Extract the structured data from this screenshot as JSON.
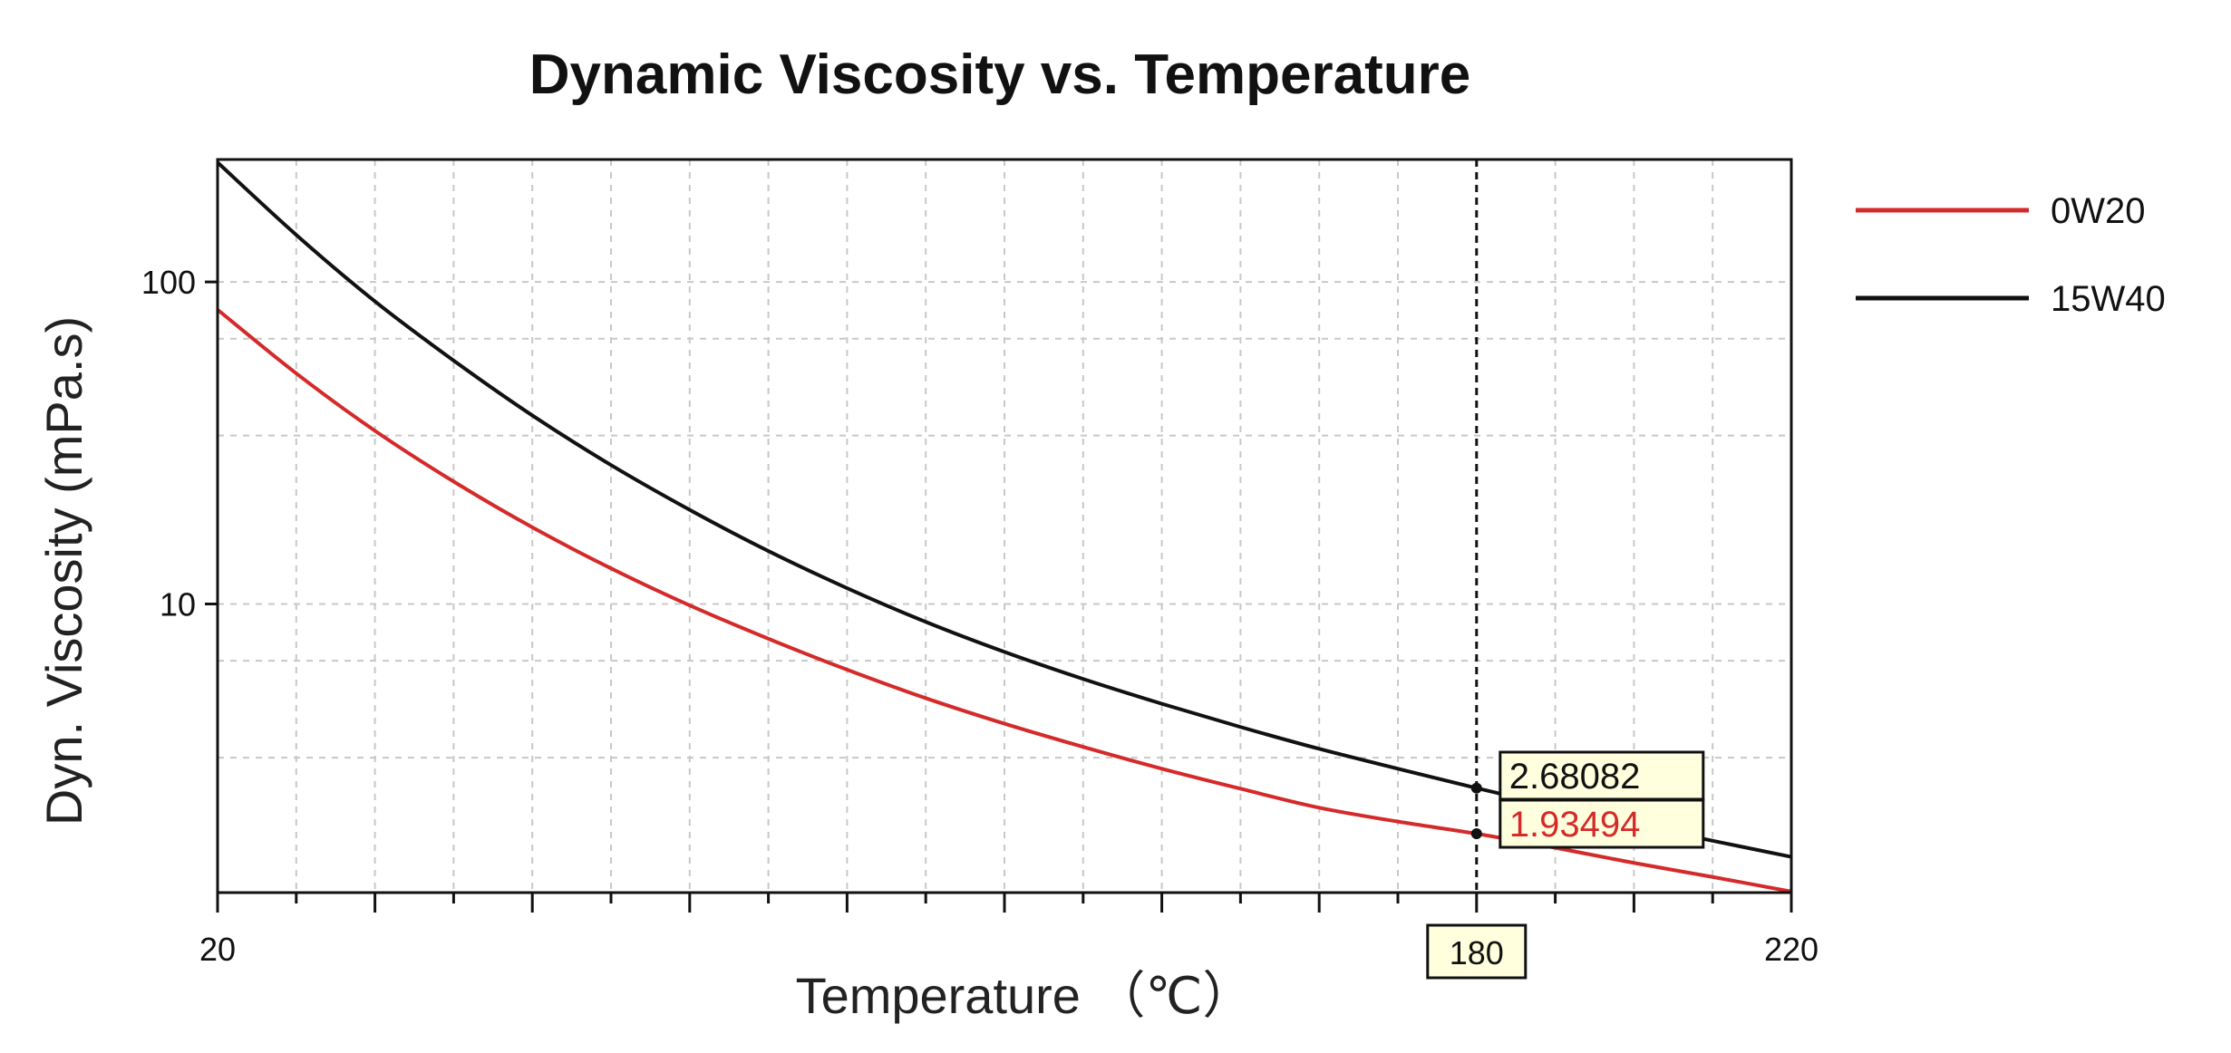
{
  "chart_data": {
    "type": "line",
    "title": "Dynamic Viscosity vs. Temperature",
    "xlabel": "Temperature （℃）",
    "ylabel": "Dyn. Viscosity (mPa.s)",
    "x_scale": "linear",
    "y_scale": "log",
    "xlim": [
      20,
      220
    ],
    "ylim": [
      1.27,
      240
    ],
    "x_tick_labels": [
      "20",
      "220"
    ],
    "y_tick_labels": [
      "10",
      "100"
    ],
    "grid": true,
    "legend_position": "right",
    "cursor": {
      "x": 180,
      "x_label": "180"
    },
    "series": [
      {
        "name": "0W20",
        "color": "#d42a2a",
        "x": [
          20,
          30,
          40,
          50,
          60,
          70,
          80,
          90,
          100,
          110,
          120,
          130,
          140,
          150,
          160,
          170,
          180,
          190,
          200,
          210,
          220
        ],
        "values": [
          82,
          52,
          34.5,
          24,
          17.3,
          12.9,
          9.9,
          7.8,
          6.25,
          5.1,
          4.25,
          3.6,
          3.08,
          2.67,
          2.33,
          2.11,
          1.93494,
          1.75,
          1.57,
          1.42,
          1.28
        ],
        "readout_value": "1.93494"
      },
      {
        "name": "15W40",
        "color": "#111111",
        "x": [
          20,
          30,
          40,
          50,
          60,
          70,
          80,
          90,
          100,
          110,
          120,
          130,
          140,
          150,
          160,
          170,
          180,
          190,
          200,
          210,
          220
        ],
        "values": [
          235,
          140,
          87,
          57,
          38.5,
          27,
          19.6,
          14.6,
          11.2,
          8.8,
          7.1,
          5.85,
          4.9,
          4.15,
          3.55,
          3.08,
          2.68082,
          2.35,
          2.07,
          1.84,
          1.64
        ],
        "readout_value": "2.68082"
      }
    ]
  }
}
